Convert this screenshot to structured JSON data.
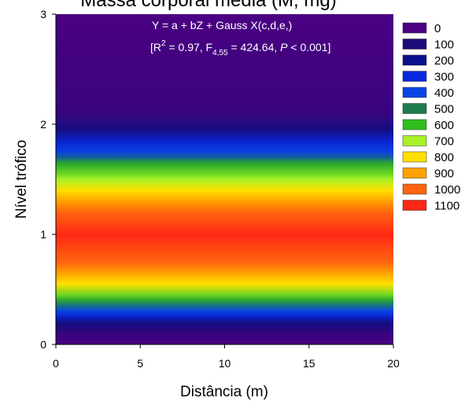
{
  "chart_data": {
    "type": "heatmap",
    "title": "Massa corporal média (M, mg)",
    "xlabel": "Distância (m)",
    "ylabel": "Nível trófico",
    "xlim": [
      0,
      20
    ],
    "ylim": [
      0,
      3
    ],
    "xticks": [
      "0",
      "5",
      "10",
      "15",
      "20"
    ],
    "xtick_values": [
      0,
      5,
      10,
      15,
      20
    ],
    "yticks": [
      "0",
      "1",
      "2",
      "3"
    ],
    "ytick_values": [
      0,
      1,
      2,
      3
    ],
    "annotation_equation": "Y = a + bZ + Gauss X(c,d,e,)",
    "annotation_stats": "[R2 = 0.97, F4,55 = 424.64, P < 0.001]",
    "legend": [
      {
        "label": "0",
        "color": "#4B0082"
      },
      {
        "label": "100",
        "color": "#1E0A78"
      },
      {
        "label": "200",
        "color": "#0A0F8C"
      },
      {
        "label": "300",
        "color": "#0A28DC"
      },
      {
        "label": "400",
        "color": "#0A46E6"
      },
      {
        "label": "500",
        "color": "#1E7A4E"
      },
      {
        "label": "600",
        "color": "#2FBE1E"
      },
      {
        "label": "700",
        "color": "#A8F028"
      },
      {
        "label": "800",
        "color": "#FFE000"
      },
      {
        "label": "900",
        "color": "#FFA000"
      },
      {
        "label": "1000",
        "color": "#FF6410"
      },
      {
        "label": "1100",
        "color": "#FF2814"
      }
    ],
    "profile": {
      "y": [
        0,
        0.1,
        0.2,
        0.25,
        0.3,
        0.4,
        0.45,
        0.55,
        0.65,
        0.75,
        1.0,
        1.2,
        1.3,
        1.4,
        1.5,
        1.55,
        1.65,
        1.7,
        1.75,
        1.85,
        1.95,
        2.1,
        3.0
      ],
      "mass": [
        0,
        50,
        150,
        280,
        380,
        560,
        650,
        800,
        900,
        1000,
        1100,
        1000,
        900,
        800,
        700,
        650,
        560,
        450,
        380,
        280,
        150,
        40,
        0
      ]
    }
  }
}
